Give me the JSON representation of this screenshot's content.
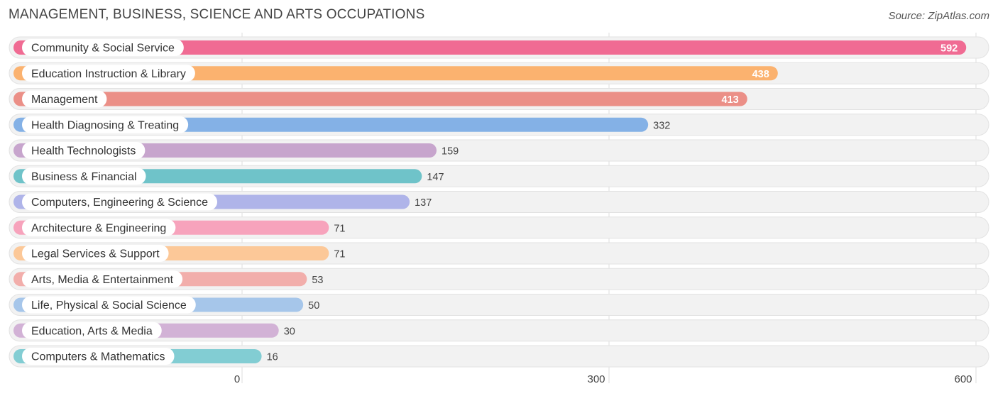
{
  "header": {
    "title": "MANAGEMENT, BUSINESS, SCIENCE AND ARTS OCCUPATIONS",
    "source": "Source: ZipAtlas.com"
  },
  "chart_data": {
    "type": "bar",
    "orientation": "horizontal",
    "title": "MANAGEMENT, BUSINESS, SCIENCE AND ARTS OCCUPATIONS",
    "xlabel": "",
    "ylabel": "",
    "xlim": [
      0,
      600
    ],
    "xticks": [
      0,
      300,
      600
    ],
    "grid": true,
    "categories": [
      "Community & Social Service",
      "Education Instruction & Library",
      "Management",
      "Health Diagnosing & Treating",
      "Health Technologists",
      "Business & Financial",
      "Computers, Engineering & Science",
      "Architecture & Engineering",
      "Legal Services & Support",
      "Arts, Media & Entertainment",
      "Life, Physical & Social Science",
      "Education, Arts & Media",
      "Computers & Mathematics"
    ],
    "values": [
      592,
      438,
      413,
      332,
      159,
      147,
      137,
      71,
      71,
      53,
      50,
      30,
      16
    ],
    "colors": [
      "#f06b93",
      "#fbb26f",
      "#eb8f87",
      "#84b1e6",
      "#c7a5cd",
      "#6fc3c9",
      "#afb4e9",
      "#f7a3bc",
      "#fcc898",
      "#f2aeab",
      "#a6c6ea",
      "#d2b2d6",
      "#82cdd3"
    ]
  }
}
